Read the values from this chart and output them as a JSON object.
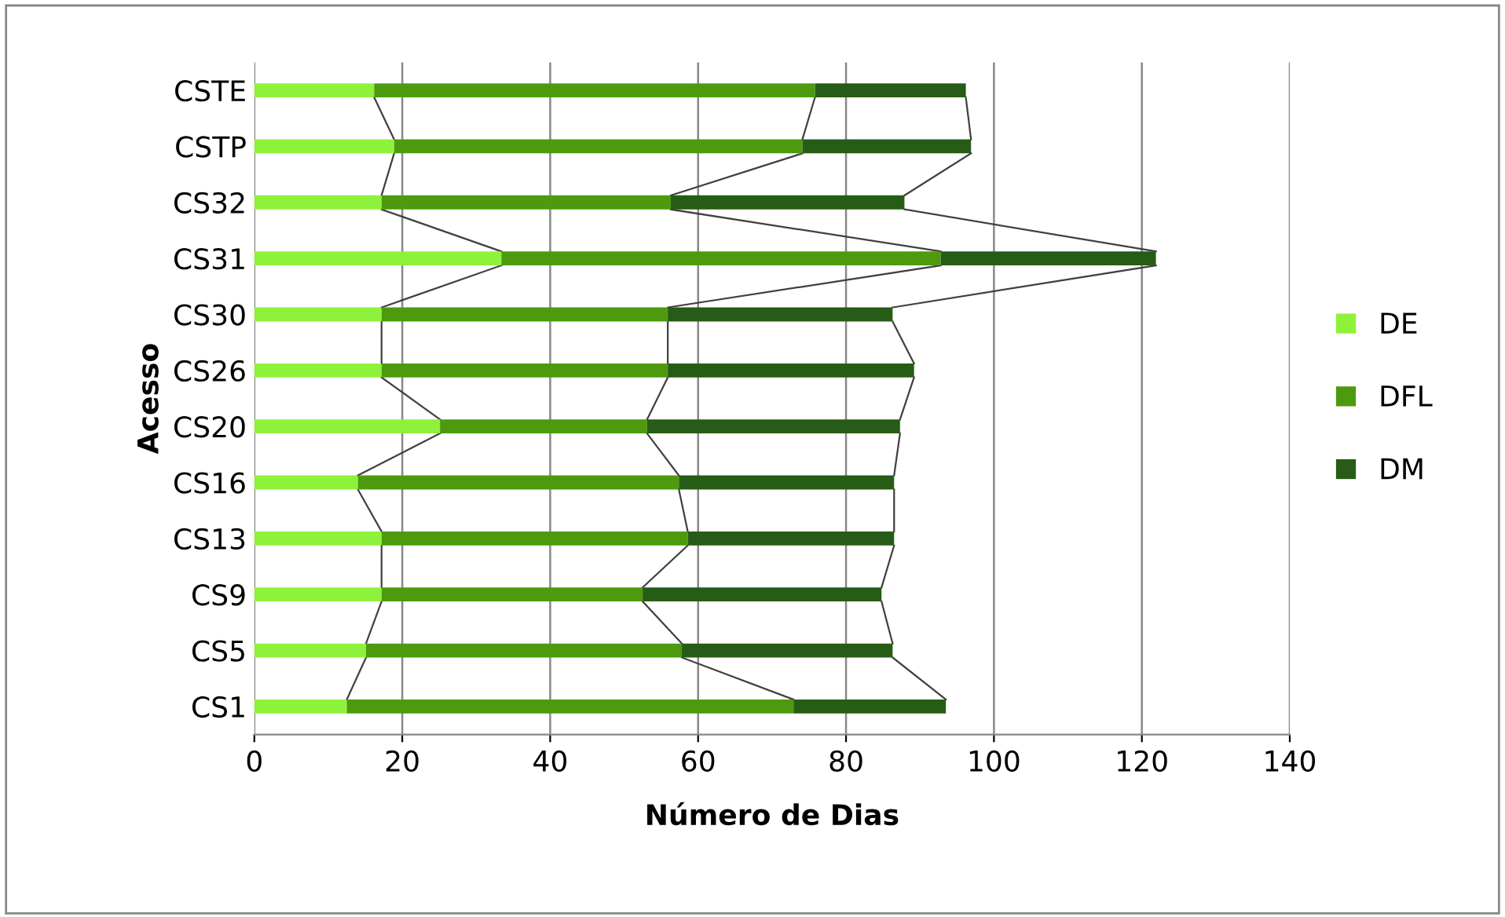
{
  "chart_data": {
    "type": "bar",
    "orientation": "horizontal",
    "stacked": true,
    "categories": [
      "CSTE",
      "CSTP",
      "CS32",
      "CS31",
      "CS30",
      "CS26",
      "CS20",
      "CS16",
      "CS13",
      "CS9",
      "CS5",
      "CS1"
    ],
    "series": [
      {
        "name": "DE",
        "color": "#8ef23a",
        "values": [
          16.2,
          18.9,
          17.2,
          33.4,
          17.2,
          17.2,
          25.1,
          14.0,
          17.2,
          17.2,
          15.1,
          12.5
        ]
      },
      {
        "name": "DFL",
        "color": "#4e9a0e",
        "values": [
          59.6,
          55.2,
          39.1,
          59.4,
          38.7,
          38.7,
          28.0,
          43.4,
          41.4,
          35.3,
          42.7,
          60.4
        ]
      },
      {
        "name": "DM",
        "color": "#265c16",
        "values": [
          20.4,
          22.8,
          31.6,
          29.1,
          30.4,
          33.3,
          34.2,
          29.1,
          27.9,
          32.3,
          28.5,
          20.6
        ]
      }
    ],
    "xlabel": "Número de Dias",
    "ylabel": "Acesso",
    "xlim": [
      0,
      140
    ],
    "xticks": [
      0,
      20,
      40,
      60,
      80,
      100,
      120,
      140
    ],
    "grid": "x",
    "legend": "right"
  }
}
